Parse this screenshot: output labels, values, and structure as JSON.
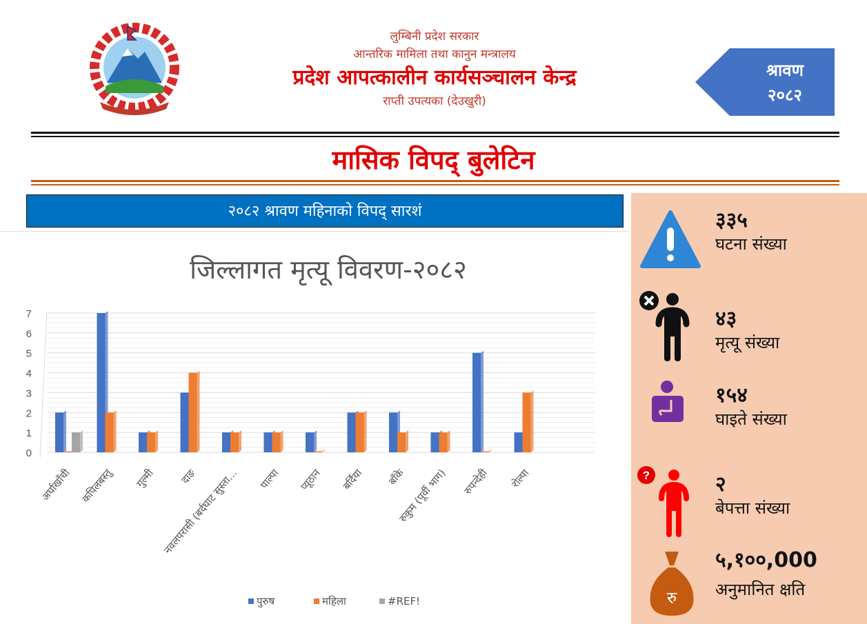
{
  "header": {
    "line1": "लुम्बिनी प्रदेश सरकार",
    "line2": "आन्तरिक मामिला तथा कानुन मन्त्रालय",
    "line3": "प्रदेश आपत्कालीन कार्यसञ्चालन केन्द्र",
    "line4": "राप्ती उपत्यका (देउखुरी)",
    "month": "श्रावण",
    "year": "२०८२"
  },
  "title": "मासिक विपद् बुलेटिन",
  "banner": "२०८२ श्रावण महिनाको विपद् सारशं",
  "stats": [
    {
      "value": "३३५",
      "label": "घटना संख्या",
      "icon": "warning-icon"
    },
    {
      "value": "४३",
      "label": "मृत्यू संख्या",
      "icon": "person-dead-icon"
    },
    {
      "value": "१५४",
      "label": "घाइते संख्या",
      "icon": "person-injured-icon"
    },
    {
      "value": "२",
      "label": "बेपत्ता संख्या",
      "icon": "person-missing-icon"
    },
    {
      "value": "५,१००,000",
      "label": "अनुमानित क्षति",
      "icon": "money-bag-icon"
    }
  ],
  "chart_data": {
    "type": "bar",
    "title": "जिल्लागत मृत्यू विवरण-२०८२",
    "categories": [
      "अर्घाखाँची",
      "कपिलबस्तु",
      "गुल्मी",
      "दाङ",
      "नवलपरासी (बर्दघाट सुस्ता...",
      "पाल्पा",
      "प्यूठान",
      "बर्दिया",
      "बाँके",
      "रुकुम (पूर्वी भाग)",
      "रुपन्देही",
      "रोल्पा"
    ],
    "series": [
      {
        "name": "पुरुष",
        "color": "#4472c4",
        "values": [
          2,
          7,
          1,
          3,
          1,
          1,
          1,
          2,
          2,
          1,
          5,
          1
        ]
      },
      {
        "name": "महिला",
        "color": "#ed7d31",
        "values": [
          0,
          2,
          1,
          4,
          1,
          1,
          0,
          2,
          1,
          1,
          0,
          3
        ]
      },
      {
        "name": "#REF!",
        "color": "#a5a5a5",
        "values": [
          1,
          0,
          0,
          0,
          0,
          0,
          0,
          0,
          0,
          0,
          0,
          0
        ]
      }
    ],
    "yticks": [
      "0",
      "1",
      "2",
      "3",
      "4",
      "5",
      "6",
      "7"
    ],
    "ylim": [
      0,
      7
    ],
    "grid": true,
    "legend": "bottom"
  },
  "colors": {
    "red": "#e00000",
    "blue": "#0070c0",
    "arrow": "#4472c4",
    "panel": "#f6cbb0"
  }
}
